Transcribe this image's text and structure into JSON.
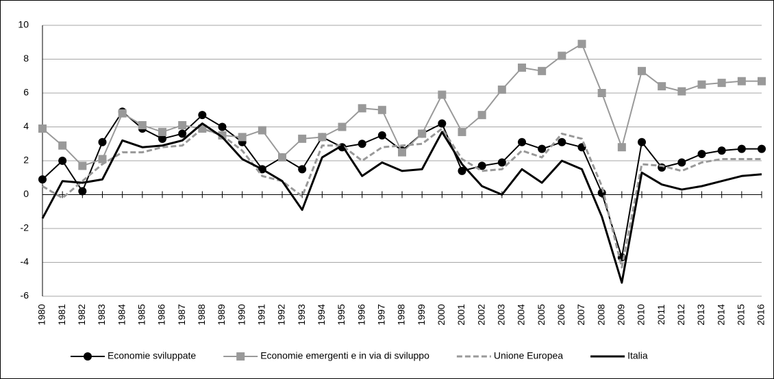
{
  "chart_data": {
    "type": "line",
    "categories": [
      "1980",
      "1981",
      "1982",
      "1983",
      "1984",
      "1985",
      "1986",
      "1987",
      "1988",
      "1989",
      "1990",
      "1991",
      "1992",
      "1993",
      "1994",
      "1995",
      "1996",
      "1997",
      "1998",
      "1999",
      "2000",
      "2001",
      "2002",
      "2003",
      "2004",
      "2005",
      "2006",
      "2007",
      "2008",
      "2009",
      "2010",
      "2011",
      "2012",
      "2013",
      "2014",
      "2015",
      "2016"
    ],
    "ylim": [
      -6,
      10
    ],
    "yticks": [
      -6,
      -4,
      -2,
      0,
      2,
      4,
      6,
      8,
      10
    ],
    "grid": true,
    "legend": "bottom",
    "series": [
      {
        "name": "Economie sviluppate",
        "color": "#000000",
        "marker": "circle",
        "dashed": false,
        "values": [
          0.9,
          2.0,
          0.2,
          3.1,
          4.9,
          3.9,
          3.3,
          3.6,
          4.7,
          4.0,
          3.1,
          1.5,
          2.2,
          1.5,
          3.4,
          2.8,
          3.0,
          3.5,
          2.6,
          3.6,
          4.2,
          1.4,
          1.7,
          1.9,
          3.1,
          2.7,
          3.1,
          2.8,
          0.1,
          -3.7,
          3.1,
          1.6,
          1.9,
          2.4,
          2.6,
          2.7,
          2.7
        ]
      },
      {
        "name": "Economie emergenti e in via di sviluppo",
        "color": "#999999",
        "marker": "square",
        "dashed": false,
        "values": [
          3.9,
          2.9,
          1.7,
          2.1,
          4.8,
          4.1,
          3.7,
          4.1,
          3.9,
          3.5,
          3.4,
          3.8,
          2.2,
          3.3,
          3.4,
          4.0,
          5.1,
          5.0,
          2.5,
          3.6,
          5.9,
          3.7,
          4.7,
          6.2,
          7.5,
          7.3,
          8.2,
          8.9,
          6.0,
          2.8,
          7.3,
          6.4,
          6.1,
          6.5,
          6.6,
          6.7,
          6.7
        ]
      },
      {
        "name": "Unione Europea",
        "color": "#999999",
        "marker": null,
        "dashed": true,
        "values": [
          0.5,
          -0.2,
          0.8,
          1.8,
          2.5,
          2.5,
          2.8,
          2.9,
          3.9,
          3.5,
          2.6,
          1.1,
          0.8,
          -0.1,
          2.9,
          2.9,
          2.0,
          2.8,
          2.9,
          3.0,
          3.9,
          2.1,
          1.4,
          1.5,
          2.6,
          2.2,
          3.6,
          3.3,
          0.5,
          -4.3,
          1.8,
          1.7,
          1.4,
          1.9,
          2.1,
          2.1,
          2.1
        ]
      },
      {
        "name": "Italia",
        "color": "#000000",
        "marker": null,
        "dashed": false,
        "values": [
          -1.4,
          0.8,
          0.7,
          0.9,
          3.2,
          2.8,
          2.9,
          3.2,
          4.2,
          3.4,
          2.1,
          1.5,
          0.8,
          -0.9,
          2.2,
          2.9,
          1.1,
          1.9,
          1.4,
          1.5,
          3.7,
          1.8,
          0.5,
          0.0,
          1.5,
          0.7,
          2.0,
          1.5,
          -1.3,
          -5.2,
          1.3,
          0.6,
          0.3,
          0.5,
          0.8,
          1.1,
          1.2
        ]
      }
    ]
  }
}
